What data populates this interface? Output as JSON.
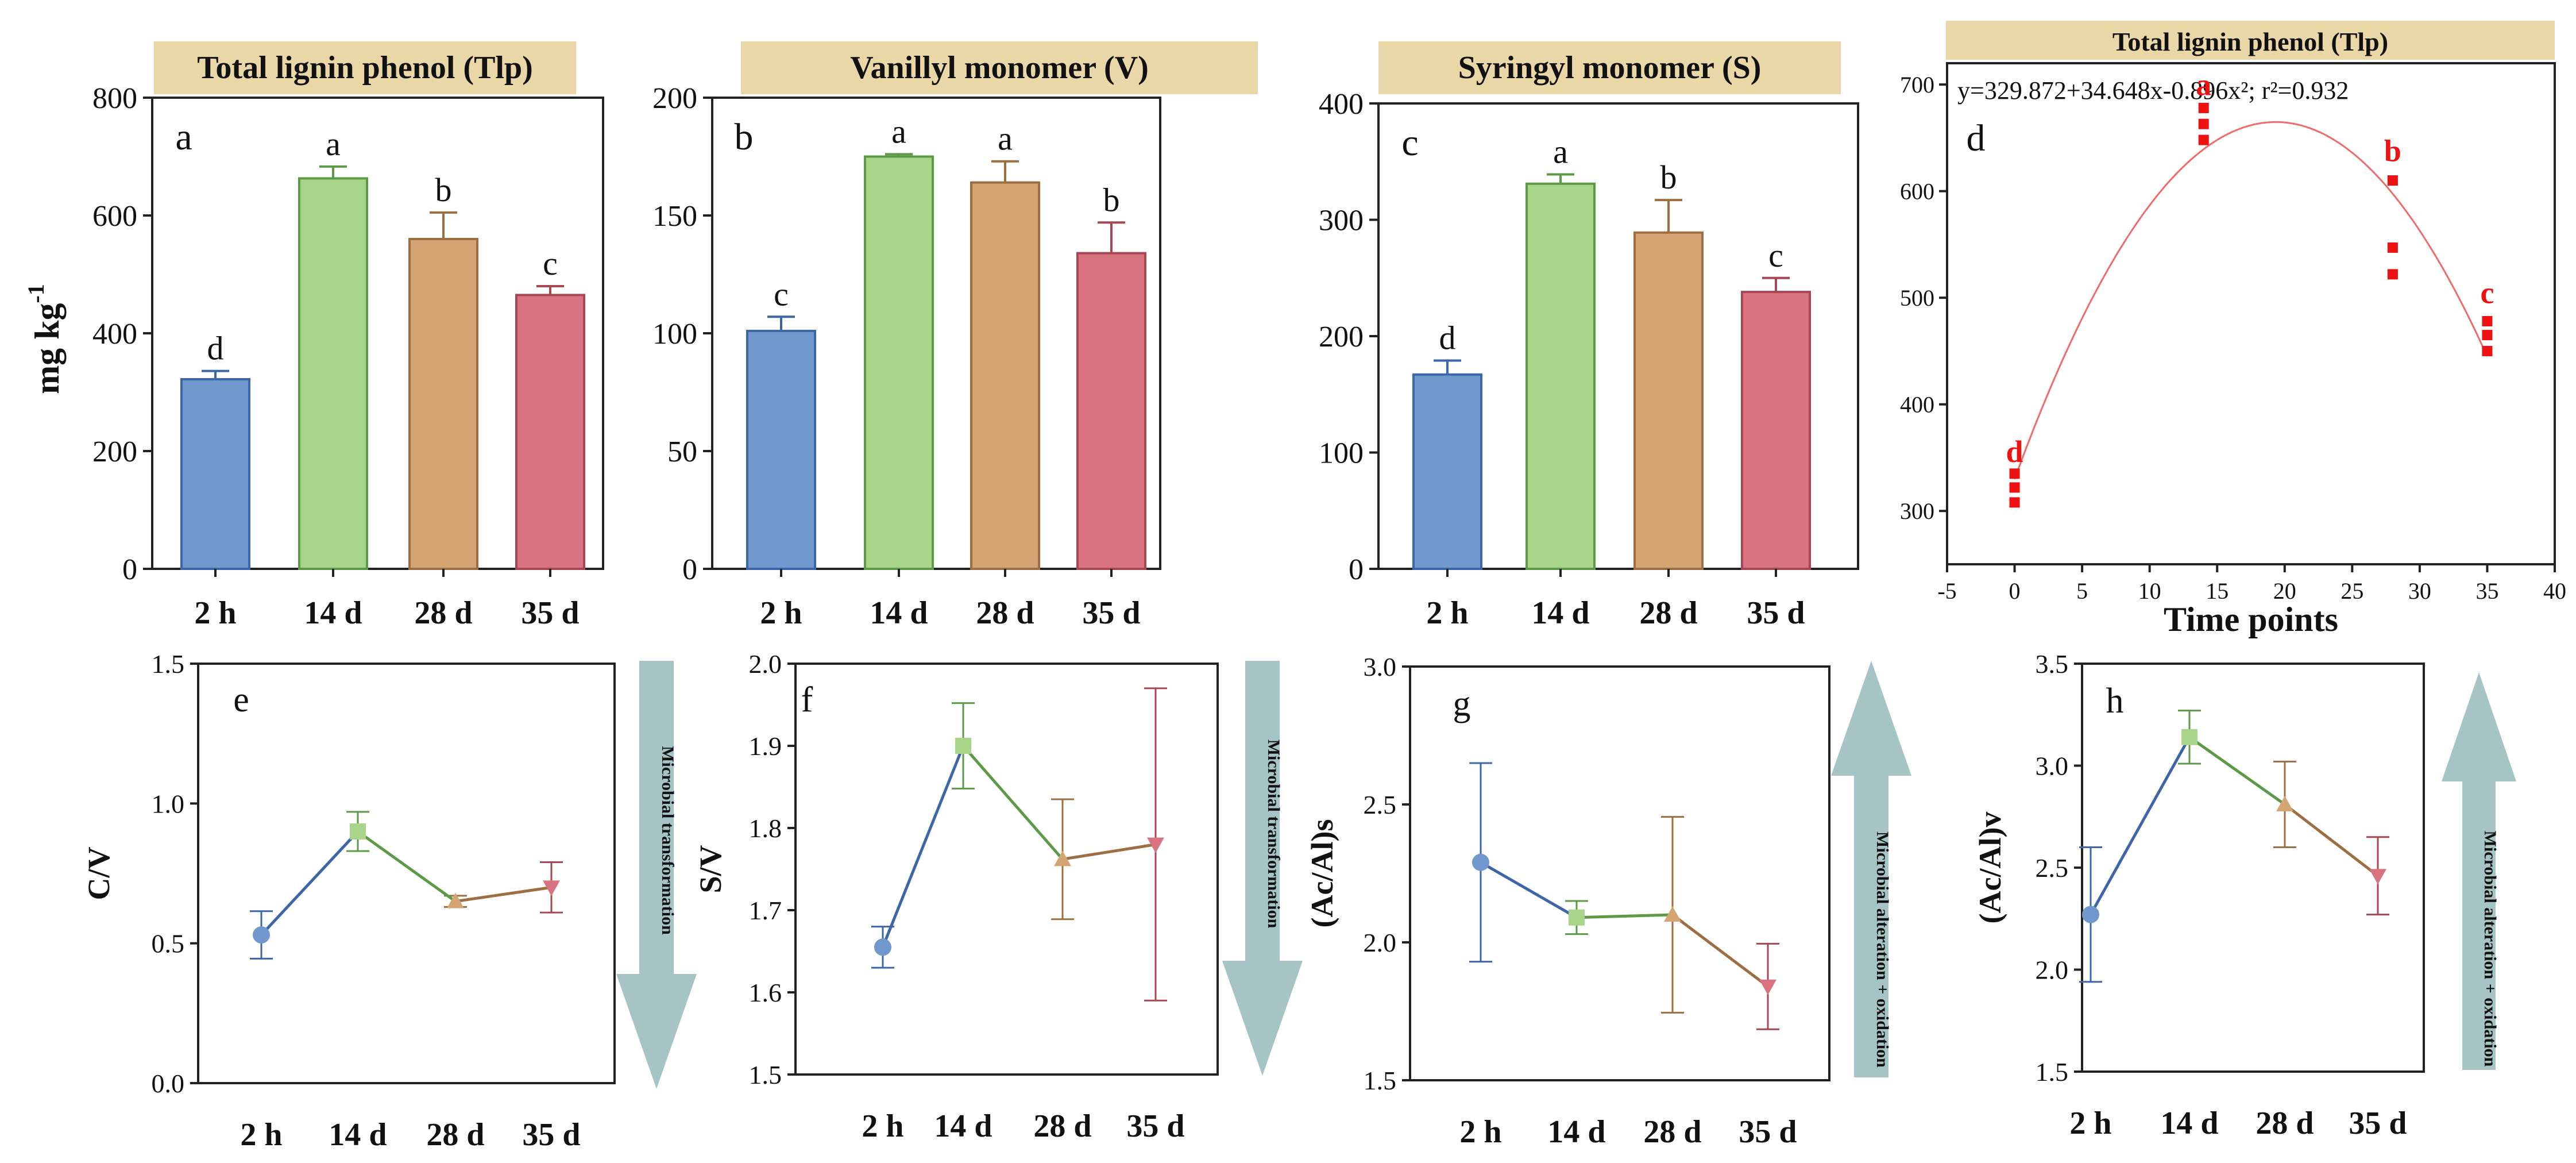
{
  "colors": {
    "blue": "#7098cc",
    "blue_edge": "#3d66a8",
    "green": "#a8d58a",
    "green_edge": "#5c9a48",
    "orange": "#d4a473",
    "orange_edge": "#9d6e41",
    "red": "#d9737f",
    "red_edge": "#a84754",
    "title_bg": "#ead7a7",
    "arrow": "#a6c4c6",
    "fit": "#f06a6a",
    "marker": "#ee1111"
  },
  "labels": {
    "ylabel_mg": "mg kg",
    "ylabel_mg_sup": "-1"
  },
  "chart_data": [
    {
      "type": "bar",
      "panel": "a",
      "title": "Total lignin phenol (Tlp)",
      "categories": [
        "2 h",
        "14 d",
        "28 d",
        "35 d"
      ],
      "values": [
        322,
        663,
        560,
        465
      ],
      "errors": [
        14,
        20,
        45,
        15
      ],
      "letters": [
        "d",
        "a",
        "b",
        "c"
      ],
      "ylim": [
        0,
        800
      ],
      "yticks": [
        "0",
        "200",
        "400",
        "600",
        "800"
      ],
      "ylabel": "mg kg-1"
    },
    {
      "type": "bar",
      "panel": "b",
      "title": "Vanillyl monomer (V)",
      "categories": [
        "2 h",
        "14 d",
        "28 d",
        "35 d"
      ],
      "values": [
        101,
        175,
        164,
        134
      ],
      "errors": [
        6,
        1,
        9,
        13
      ],
      "letters": [
        "c",
        "a",
        "a",
        "b"
      ],
      "ylim": [
        0,
        200
      ],
      "yticks": [
        "0",
        "50",
        "100",
        "150",
        "200"
      ]
    },
    {
      "type": "bar",
      "panel": "c",
      "title": "Syringyl monomer (S)",
      "categories": [
        "2 h",
        "14 d",
        "28 d",
        "35 d"
      ],
      "values": [
        167,
        331,
        289,
        238
      ],
      "errors": [
        12,
        8,
        28,
        12
      ],
      "letters": [
        "d",
        "a",
        "b",
        "c"
      ],
      "ylim": [
        0,
        400
      ],
      "yticks": [
        "0",
        "100",
        "200",
        "300",
        "400"
      ]
    },
    {
      "type": "scatter",
      "panel": "d",
      "title": "Total lignin phenol (Tlp)",
      "equation": "y=329.872+34.648x-0.896x²; r²=0.932",
      "xlabel": "Time points",
      "xlim": [
        -5,
        40
      ],
      "ylim": [
        250,
        720
      ],
      "xticks": [
        "-5",
        "0",
        "5",
        "10",
        "15",
        "20",
        "25",
        "30",
        "35",
        "40"
      ],
      "yticks": [
        "300",
        "400",
        "500",
        "600",
        "700"
      ],
      "points": [
        {
          "x": 0,
          "y": 308
        },
        {
          "x": 0,
          "y": 322
        },
        {
          "x": 0,
          "y": 335
        },
        {
          "x": 14,
          "y": 648
        },
        {
          "x": 14,
          "y": 663
        },
        {
          "x": 14,
          "y": 678
        },
        {
          "x": 28,
          "y": 522
        },
        {
          "x": 28,
          "y": 547
        },
        {
          "x": 28,
          "y": 610
        },
        {
          "x": 35,
          "y": 450
        },
        {
          "x": 35,
          "y": 465
        },
        {
          "x": 35,
          "y": 478
        }
      ],
      "letters": [
        {
          "x": 0,
          "y": 346,
          "text": "d"
        },
        {
          "x": 14,
          "y": 690,
          "text": "a"
        },
        {
          "x": 28,
          "y": 628,
          "text": "b"
        },
        {
          "x": 35,
          "y": 495,
          "text": "c"
        }
      ],
      "fit": {
        "a": 329.872,
        "b": 34.648,
        "c": -0.896,
        "x_from": 0,
        "x_to": 35
      }
    },
    {
      "type": "line",
      "panel": "e",
      "categories": [
        "2 h",
        "14 d",
        "28 d",
        "35 d"
      ],
      "values": [
        0.53,
        0.9,
        0.65,
        0.7
      ],
      "errors": [
        0.085,
        0.07,
        0.02,
        0.09
      ],
      "ylim": [
        0.0,
        1.5
      ],
      "yticks": [
        "0.0",
        "0.5",
        "1.0",
        "1.5"
      ],
      "ylabel": "C/V",
      "arrow": {
        "direction": "down",
        "text": "Microbial transformation"
      }
    },
    {
      "type": "line",
      "panel": "f",
      "categories": [
        "2 h",
        "14 d",
        "28 d",
        "35 d"
      ],
      "values": [
        1.655,
        1.9,
        1.762,
        1.78
      ],
      "errors": [
        0.025,
        0.052,
        0.073,
        0.19
      ],
      "ylim": [
        1.5,
        2.0
      ],
      "yticks": [
        "1.5",
        "1.6",
        "1.7",
        "1.8",
        "1.9",
        "2.0"
      ],
      "ylabel": "S/V",
      "arrow": {
        "direction": "down",
        "text": "Microbial transformation"
      }
    },
    {
      "type": "line",
      "panel": "g",
      "categories": [
        "2 h",
        "14 d",
        "28 d",
        "35 d"
      ],
      "values": [
        2.29,
        2.09,
        2.1,
        1.84
      ],
      "errors": [
        0.36,
        0.06,
        0.355,
        0.155
      ],
      "ylim": [
        1.5,
        3.0
      ],
      "yticks": [
        "1.5",
        "2.0",
        "2.5",
        "3.0"
      ],
      "ylabel": "(Ac/Al)s",
      "arrow": {
        "direction": "up",
        "text": "Microbial alteration + oxidation"
      }
    },
    {
      "type": "line",
      "panel": "h",
      "categories": [
        "2 h",
        "14 d",
        "28 d",
        "35 d"
      ],
      "values": [
        2.27,
        3.14,
        2.81,
        2.46
      ],
      "errors": [
        0.33,
        0.13,
        0.21,
        0.19
      ],
      "ylim": [
        1.5,
        3.5
      ],
      "yticks": [
        "1.5",
        "2.0",
        "2.5",
        "3.0",
        "3.5"
      ],
      "ylabel": "(Ac/Al)v",
      "arrow": {
        "direction": "up",
        "text": "Microbial alteration + oxidation"
      }
    }
  ]
}
